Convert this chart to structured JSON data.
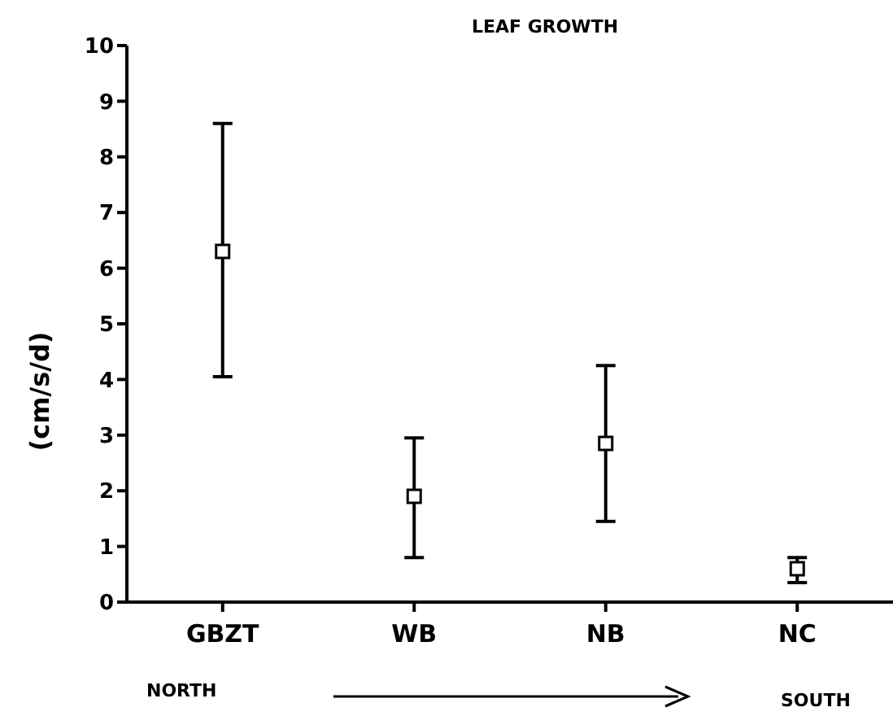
{
  "chart_data": {
    "type": "scatter",
    "title": "LEAF GROWTH",
    "ylabel": "(cm/s/d)",
    "categories": [
      "GBZT",
      "WB",
      "NB",
      "NC"
    ],
    "values": [
      6.3,
      1.9,
      2.85,
      0.6
    ],
    "errors": [
      [
        4.05,
        8.6
      ],
      [
        0.8,
        2.95
      ],
      [
        1.45,
        4.25
      ],
      [
        0.35,
        0.8
      ]
    ],
    "color": "#000000",
    "marker": "square",
    "ylim": [
      0,
      10
    ],
    "yticks": [
      0,
      1,
      2,
      3,
      4,
      5,
      6,
      7,
      8,
      9,
      10
    ],
    "grid": false,
    "annotations": [
      "NORTH",
      "SOUTH"
    ]
  }
}
